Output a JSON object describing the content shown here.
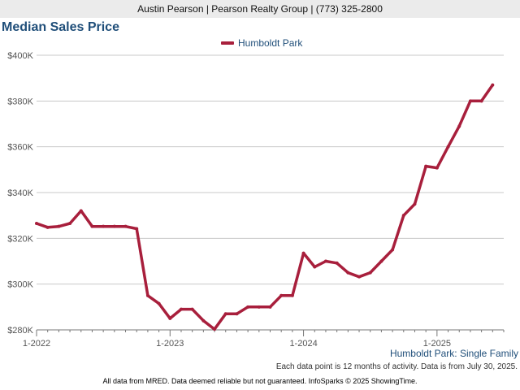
{
  "header": {
    "contact": "Austin Pearson | Pearson Realty Group | (773) 325-2800"
  },
  "chart_data": {
    "type": "line",
    "title": "Median Sales Price",
    "subtitle": "Humboldt Park: Single Family",
    "note": "Each data point is 12 months of activity. Data is from July 30, 2025.",
    "footer": "All data from MRED. Data deemed reliable but not guaranteed. InfoSparks © 2025 ShowingTime.",
    "legend_position": "top-center",
    "grid": true,
    "color": "#a81f3c",
    "x_ticks": [
      "1-2022",
      "1-2023",
      "1-2024",
      "1-2025"
    ],
    "y_ticks": [
      "$280K",
      "$300K",
      "$320K",
      "$340K",
      "$360K",
      "$380K",
      "$400K"
    ],
    "ylim": [
      280000,
      400000
    ],
    "xlim": [
      "2022-01",
      "2025-07"
    ],
    "series": [
      {
        "name": "Humboldt Park",
        "x": [
          "2022-01",
          "2022-02",
          "2022-03",
          "2022-04",
          "2022-05",
          "2022-06",
          "2022-07",
          "2022-08",
          "2022-09",
          "2022-10",
          "2022-11",
          "2022-12",
          "2023-01",
          "2023-02",
          "2023-03",
          "2023-04",
          "2023-05",
          "2023-06",
          "2023-07",
          "2023-08",
          "2023-09",
          "2023-10",
          "2023-11",
          "2023-12",
          "2024-01",
          "2024-02",
          "2024-03",
          "2024-04",
          "2024-05",
          "2024-06",
          "2024-07",
          "2024-08",
          "2024-09",
          "2024-10",
          "2024-11",
          "2024-12",
          "2025-01",
          "2025-02",
          "2025-03",
          "2025-04",
          "2025-05",
          "2025-06"
        ],
        "values": [
          326500,
          324800,
          325200,
          326500,
          332000,
          325200,
          325200,
          325200,
          325200,
          324200,
          295000,
          291500,
          285000,
          289000,
          289000,
          284000,
          280300,
          287000,
          287000,
          290000,
          290000,
          290000,
          295000,
          295000,
          313500,
          307500,
          310000,
          309200,
          305000,
          303200,
          305000,
          310000,
          315000,
          330000,
          335000,
          351500,
          350800,
          360000,
          369000,
          380000,
          380000,
          387000
        ]
      }
    ]
  }
}
